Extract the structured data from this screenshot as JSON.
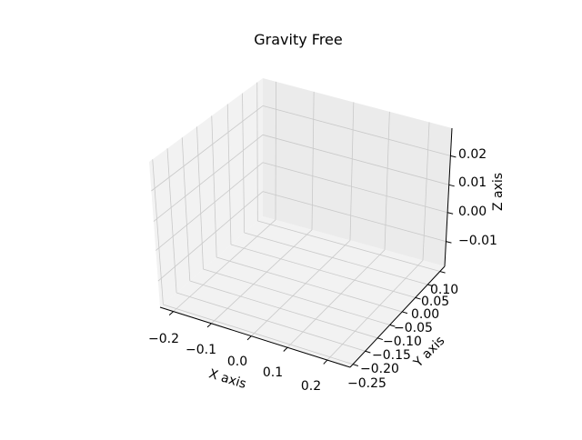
{
  "chart_data": {
    "type": "scatter",
    "projection": "3d",
    "title": "Gravity Free",
    "xlabel": "X axis",
    "ylabel": "Y axis",
    "zlabel": "Z axis",
    "xticks": [
      "−0.2",
      "−0.1",
      "0.0",
      "0.1",
      "0.2"
    ],
    "yticks": [
      "−0.25",
      "−0.20",
      "−0.15",
      "−0.10",
      "−0.05",
      "0.00",
      "0.05",
      "0.10"
    ],
    "zticks": [
      "−0.01",
      "0.00",
      "0.01",
      "0.02"
    ],
    "grid": true,
    "series": [],
    "colors": {
      "pane_back": "#ebebeb",
      "pane_left": "#f2f2f2",
      "pane_floor": "#f2f2f2",
      "grid": "#c9c9c9",
      "axis": "#000000"
    }
  }
}
